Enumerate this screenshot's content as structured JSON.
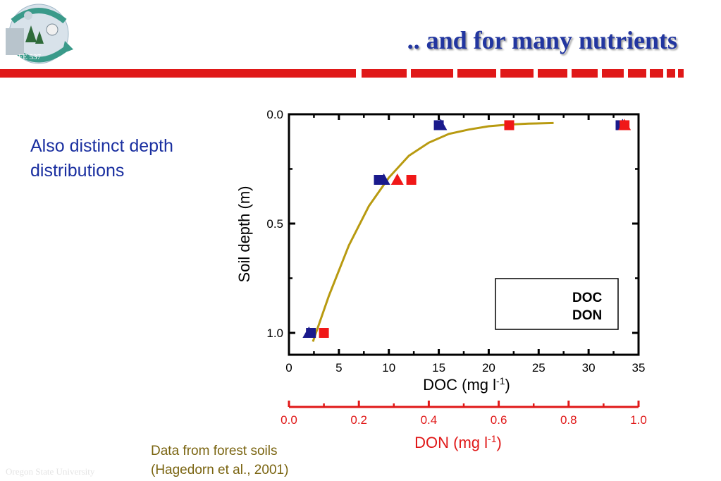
{
  "header": {
    "title": ".. and for many nutrients",
    "logo_text": "FE 537"
  },
  "body": {
    "subtitle_line1": "Also distinct depth",
    "subtitle_line2": "distributions"
  },
  "caption": {
    "line1": "Data from forest soils",
    "line2": "(Hagedorn et al., 2001)"
  },
  "footer": {
    "text": "Oregon State University"
  },
  "colors": {
    "title": "#2236a0",
    "accent_red": "#e01818",
    "doc_series": "#1a1a8c",
    "don_series": "#f01818",
    "fit_curve": "#b89a10",
    "caption": "#7a6410"
  },
  "chart_data": {
    "type": "scatter",
    "title": "",
    "xlabel": "DOC (mg l",
    "xlabel_sup": "-1",
    "xlabel_end": ")",
    "x2label": "DON (mg l",
    "x2label_sup": "-1",
    "x2label_end": ")",
    "ylabel": "Soil depth (m)",
    "xlim": [
      0,
      35
    ],
    "x2lim": [
      0.0,
      1.0
    ],
    "ylim": [
      0.0,
      1.1
    ],
    "y_inverted": true,
    "xticks": [
      "0",
      "5",
      "10",
      "15",
      "20",
      "25",
      "30",
      "35"
    ],
    "x2ticks": [
      "0.0",
      "0.2",
      "0.4",
      "0.6",
      "0.8",
      "1.0"
    ],
    "yticks": [
      "0.0",
      "0.5",
      "1.0"
    ],
    "legend_position": "bottom-right",
    "legend": {
      "doc_label": "DOC",
      "don_label": "DON"
    },
    "series": [
      {
        "name": "DOC",
        "axis": "DOC",
        "marker": "square",
        "color": "#1a1a8c",
        "points": [
          {
            "x": 2.2,
            "y": 1.0
          },
          {
            "x": 9.0,
            "y": 0.3
          },
          {
            "x": 15.0,
            "y": 0.05
          },
          {
            "x": 33.2,
            "y": 0.05
          }
        ]
      },
      {
        "name": "DOC",
        "axis": "DOC",
        "marker": "triangle",
        "color": "#1a1a8c",
        "points": [
          {
            "x": 2.0,
            "y": 1.0
          },
          {
            "x": 9.5,
            "y": 0.3
          },
          {
            "x": 15.2,
            "y": 0.05
          },
          {
            "x": 33.4,
            "y": 0.05
          }
        ]
      },
      {
        "name": "DON",
        "axis": "DON",
        "marker": "square",
        "color": "#f01818",
        "points": [
          {
            "x": 0.1,
            "y": 1.0
          },
          {
            "x": 0.35,
            "y": 0.3
          },
          {
            "x": 0.63,
            "y": 0.05
          },
          {
            "x": 0.96,
            "y": 0.05
          }
        ]
      },
      {
        "name": "DON",
        "axis": "DON",
        "marker": "triangle",
        "color": "#f01818",
        "points": [
          {
            "x": 0.31,
            "y": 0.3
          },
          {
            "x": 0.96,
            "y": 0.05
          }
        ]
      }
    ],
    "fit_curve": {
      "color": "#b89a10",
      "points": [
        {
          "x": 2.4,
          "y": 1.04
        },
        {
          "x": 4,
          "y": 0.83
        },
        {
          "x": 6,
          "y": 0.6
        },
        {
          "x": 8,
          "y": 0.42
        },
        {
          "x": 10,
          "y": 0.29
        },
        {
          "x": 12,
          "y": 0.19
        },
        {
          "x": 14,
          "y": 0.13
        },
        {
          "x": 16,
          "y": 0.09
        },
        {
          "x": 18,
          "y": 0.07
        },
        {
          "x": 20,
          "y": 0.055
        },
        {
          "x": 22,
          "y": 0.047
        },
        {
          "x": 24,
          "y": 0.043
        },
        {
          "x": 26.5,
          "y": 0.04
        }
      ]
    }
  }
}
